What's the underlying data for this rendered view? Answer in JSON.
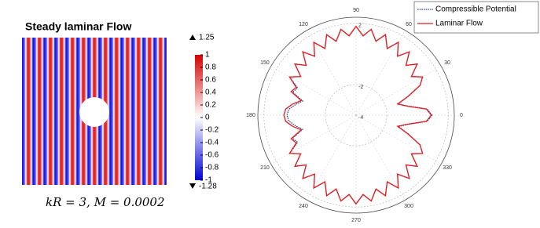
{
  "field_panel": {
    "title": "Steady laminar Flow",
    "caption": "kR = 3, M = 0.0002",
    "max_value": 1.25,
    "min_value": -1.28,
    "colorbar_ticks": [
      1,
      0.8,
      0.6,
      0.4,
      0.2,
      0,
      -0.2,
      -0.4,
      -0.6,
      -0.8,
      -1
    ],
    "colorbar_lim": [
      -1,
      1
    ]
  },
  "chart_data": {
    "type": "polar",
    "theta": [
      0,
      5,
      10,
      15,
      20,
      25,
      30,
      35,
      40,
      45,
      50,
      55,
      60,
      65,
      70,
      75,
      80,
      85,
      90,
      95,
      100,
      105,
      110,
      115,
      120,
      125,
      130,
      135,
      140,
      145,
      150,
      155,
      160,
      165,
      170,
      175,
      180,
      185,
      190,
      195,
      200,
      205,
      210,
      215,
      220,
      225,
      230,
      235,
      240,
      245,
      250,
      255,
      260,
      265,
      270,
      275,
      280,
      285,
      290,
      295,
      300,
      305,
      310,
      315,
      320,
      325,
      330,
      335,
      340,
      345,
      350,
      355
    ],
    "thetaticks": [
      0,
      30,
      60,
      90,
      120,
      150,
      180,
      210,
      240,
      270,
      300,
      330
    ],
    "rlim": [
      -4,
      2.4
    ],
    "rticks": [
      -4,
      -2,
      2
    ],
    "series": [
      {
        "name": "Compressible Potential",
        "color": "#1f3a93",
        "linestyle": "dotted",
        "values": [
          0.95,
          0.65,
          -0.55,
          -1.15,
          -0.35,
          0.6,
          1.0,
          0.4,
          1.2,
          0.6,
          1.4,
          0.7,
          1.5,
          0.8,
          1.6,
          1.0,
          1.7,
          1.2,
          1.8,
          1.2,
          1.7,
          1.0,
          1.6,
          0.8,
          1.5,
          0.7,
          1.4,
          0.6,
          1.2,
          0.4,
          1.0,
          0.2,
          0.4,
          -0.4,
          0.0,
          0.4,
          0.5,
          0.4,
          0.0,
          -0.4,
          0.4,
          0.2,
          1.0,
          0.4,
          1.2,
          0.6,
          1.4,
          0.7,
          1.5,
          0.8,
          1.6,
          1.0,
          1.7,
          1.2,
          1.8,
          1.2,
          1.7,
          1.0,
          1.6,
          0.8,
          1.5,
          0.7,
          1.4,
          0.6,
          1.2,
          0.4,
          1.0,
          0.6,
          -0.35,
          -1.15,
          -0.55,
          0.65
        ]
      },
      {
        "name": "Laminar Flow",
        "color": "#e41a1c",
        "linestyle": "solid",
        "values": [
          0.9,
          0.6,
          -0.6,
          -1.2,
          -0.4,
          0.6,
          1.0,
          0.4,
          1.2,
          0.6,
          1.4,
          0.7,
          1.5,
          0.8,
          1.6,
          1.0,
          1.7,
          1.2,
          1.8,
          1.2,
          1.7,
          1.0,
          1.6,
          0.8,
          1.5,
          0.7,
          1.4,
          0.6,
          1.2,
          0.4,
          1.0,
          0.3,
          0.5,
          -0.3,
          0.2,
          0.6,
          0.7,
          0.6,
          0.2,
          -0.3,
          0.5,
          0.3,
          1.0,
          0.4,
          1.2,
          0.6,
          1.4,
          0.7,
          1.5,
          0.8,
          1.6,
          1.0,
          1.7,
          1.2,
          1.8,
          1.2,
          1.7,
          1.0,
          1.6,
          0.8,
          1.5,
          0.7,
          1.4,
          0.6,
          1.2,
          0.4,
          1.0,
          0.6,
          -0.4,
          -1.2,
          -0.6,
          0.6
        ]
      }
    ],
    "legend": "upper right"
  }
}
